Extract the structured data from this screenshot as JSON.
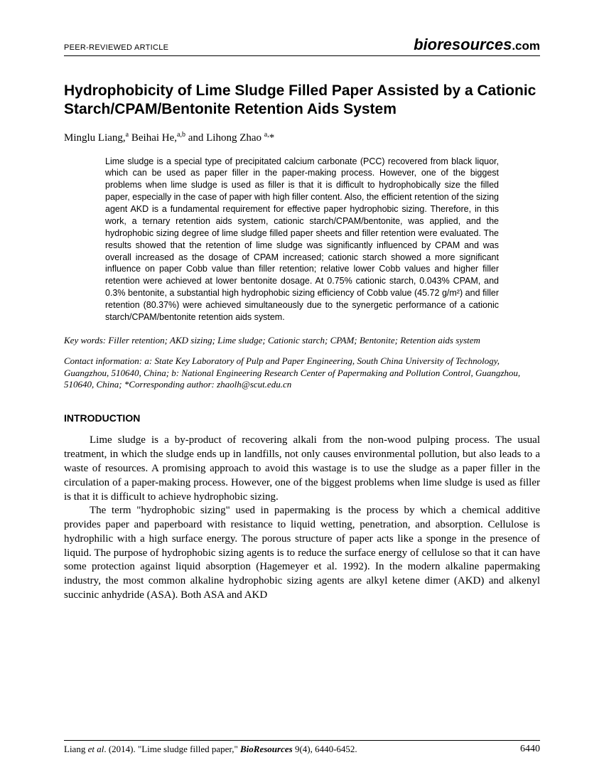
{
  "header": {
    "left": "PEER-REVIEWED ARTICLE",
    "right_bio": "bio",
    "right_res": "resources",
    "right_dotcom": ".com"
  },
  "title": "Hydrophobicity of Lime Sludge Filled Paper Assisted by a Cationic Starch/CPAM/Bentonite Retention Aids System",
  "authors_html": "Minglu Liang,<sup>a</sup> Beihai He,<sup>a,b</sup> and Lihong Zhao <sup>a,</sup>*",
  "abstract": "Lime sludge is a special type of precipitated calcium carbonate (PCC) recovered from black liquor, which can be used as paper filler in the paper-making process. However, one of the biggest problems when lime sludge is used as filler is that it is difficult to hydrophobically size the filled paper, especially in the case of paper with high filler content. Also, the efficient retention of the sizing agent AKD is a fundamental requirement for effective paper hydrophobic sizing. Therefore, in this work, a ternary retention aids system, cationic starch/CPAM/bentonite, was applied, and the hydrophobic sizing degree of lime sludge filled paper sheets and filler retention were evaluated. The results showed that the retention of lime sludge was significantly influenced by CPAM and was overall increased as the dosage of CPAM increased; cationic starch showed a more significant influence on paper Cobb value than filler retention; relative lower Cobb values and higher filler retention were achieved at lower bentonite dosage. At 0.75% cationic starch, 0.043% CPAM, and 0.3% bentonite, a substantial high hydrophobic sizing efficiency of Cobb value (45.72 g/m²) and filler retention (80.37%) were achieved simultaneously due to the synergetic performance of a cationic starch/CPAM/bentonite retention aids system.",
  "keywords_label": "Key words:",
  "keywords_text": " Filler retention; AKD sizing; Lime sludge; Cationic starch; CPAM; Bentonite; Retention aids system",
  "contact_label": "Contact information:",
  "contact_text": " a: State Key Laboratory of Pulp and Paper Engineering, South China University of Technology, Guangzhou, 510640, China; b: National Engineering Research Center of Papermaking and Pollution Control, Guangzhou, 510640, China; *Corresponding author: zhaolh@scut.edu.cn",
  "section1": "INTRODUCTION",
  "para1": "Lime sludge is a by-product of recovering alkali from the non-wood pulping process. The usual treatment, in which the sludge ends up in landfills, not only causes environmental pollution, but also leads to a waste of resources. A promising approach to avoid this wastage is to use the sludge as a paper filler in the circulation of a paper-making process. However, one of the biggest problems when lime sludge is used as filler is that it is difficult to achieve hydrophobic sizing.",
  "para2": "The term \"hydrophobic sizing\" used in papermaking is the process by which a chemical additive provides paper and paperboard with resistance to liquid wetting, penetration, and absorption. Cellulose is hydrophilic with a high surface energy. The porous structure of paper acts like a sponge in the presence of liquid. The purpose of hydrophobic sizing agents is to reduce the surface energy of cellulose so that it can have some protection against liquid absorption (Hagemeyer et al. 1992). In the modern alkaline papermaking industry, the most common alkaline hydrophobic sizing agents are alkyl ketene dimer (AKD) and alkenyl succinic anhydride (ASA). Both ASA and AKD",
  "footer": {
    "cite_author": "Liang ",
    "cite_etal": "et al",
    "cite_year": ". (2014). \"Lime sludge filled paper,\" ",
    "cite_journal": "BioResources",
    "cite_issue": " 9(4), 6440-6452.",
    "page": "6440"
  }
}
